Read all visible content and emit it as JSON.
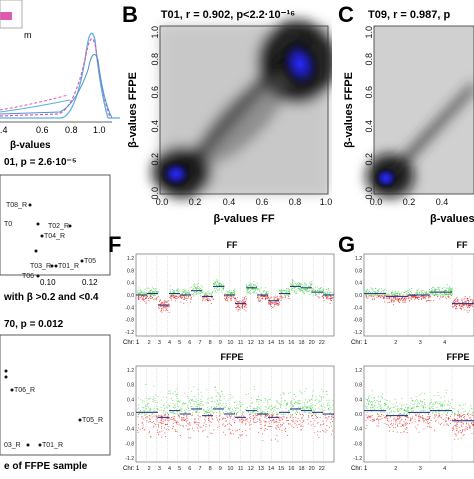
{
  "panel_letters": {
    "B": "B",
    "C": "C",
    "F": "F",
    "G": "G"
  },
  "panel_a": {
    "legend_fragment": "m",
    "xticks": [
      ".4",
      "0.6",
      "0.8",
      "1.0"
    ],
    "xlabel_fragment": "β-values"
  },
  "panel_d": {
    "title_fragment": "01, p = 2.6·10⁻⁵",
    "points": [
      "T08_R",
      "T02_R",
      "T0",
      "T04_R",
      "T05",
      "T03_R",
      "T01_R",
      "T06"
    ],
    "xticks": [
      "0.10",
      "0.12"
    ],
    "xlabel_fragment": "with β >0.2 and <0.4"
  },
  "panel_e": {
    "title_fragment": "70, p = 0.012",
    "points": [
      "T06_R",
      "T05_R",
      "03_R",
      "T01_R"
    ],
    "xlabel_fragment": "e of FFPE sample"
  },
  "panel_b": {
    "title": "T01, r = 0.902, p<2.2·10⁻¹⁶",
    "xlabel": "β-values FF",
    "ylabel": "β-values FFPE",
    "xticks": [
      "0.0",
      "0.2",
      "0.4",
      "0.6",
      "0.8",
      "1.0"
    ],
    "yticks": [
      "0.0",
      "0.2",
      "0.4",
      "0.6",
      "0.8",
      "1.0"
    ]
  },
  "panel_c": {
    "title_fragment": "T09, r = 0.987, p",
    "xlabel_fragment": "β-values",
    "ylabel": "β-values FFPE",
    "xticks": [
      "0.0",
      "0.2",
      "0.4"
    ],
    "yticks": [
      "0.0",
      "0.2",
      "0.4",
      "0.6",
      "0.8",
      "1.0"
    ]
  },
  "panel_f": {
    "top_title": "FF",
    "bottom_title": "FFPE",
    "chr_label": "Chr: 1",
    "chr_numbers": [
      "2",
      "3",
      "4",
      "5",
      "6",
      "7",
      "8",
      "9",
      "10",
      "11",
      "12",
      "13",
      "14",
      "15",
      "16",
      "18",
      "20",
      "22"
    ],
    "yticks": [
      "1.2",
      "0.8",
      "0.4",
      "0.0",
      "-0.4",
      "-0.8",
      "-1.2"
    ]
  },
  "panel_g": {
    "top_title": "FF",
    "bottom_title": "FFPE",
    "chr_label": "Chr: 1",
    "chr_numbers": [
      "2",
      "3",
      "4"
    ],
    "yticks": [
      "1.2",
      "0.8",
      "0.4",
      "0.0",
      "-0.4",
      "-0.8",
      "-1.2"
    ]
  },
  "colors": {
    "gain": "#3ecf3e",
    "loss": "#e01818",
    "density_high": "#2020d0",
    "segment": "#1a2a80"
  }
}
